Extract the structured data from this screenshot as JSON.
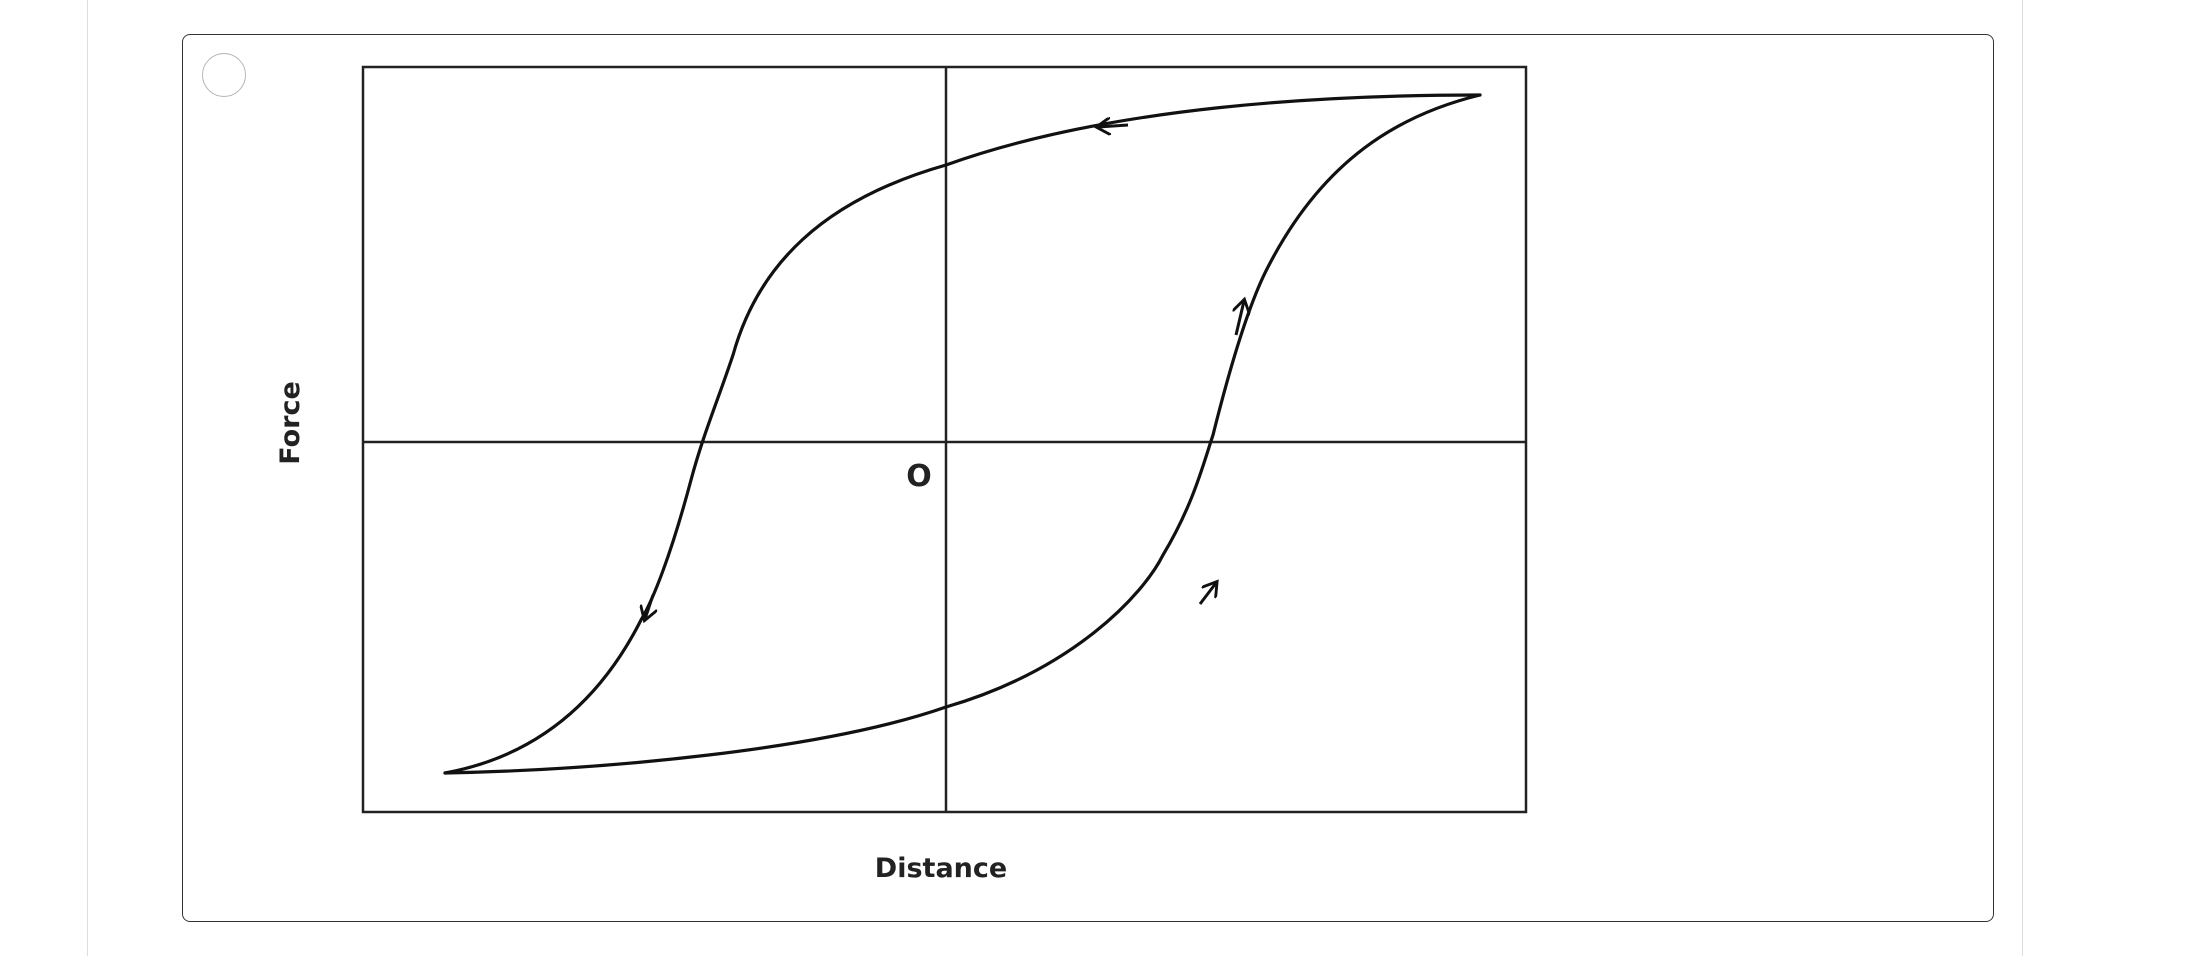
{
  "question_option": {
    "radio_selected": false
  },
  "figure": {
    "x_axis_label": "Distance",
    "y_axis_label": "Force",
    "origin_label": "O"
  },
  "chart_data": {
    "type": "line",
    "title": "",
    "xlabel": "Distance",
    "ylabel": "Force",
    "annotations": [
      "O"
    ],
    "grid": false,
    "legend": "none"
  }
}
